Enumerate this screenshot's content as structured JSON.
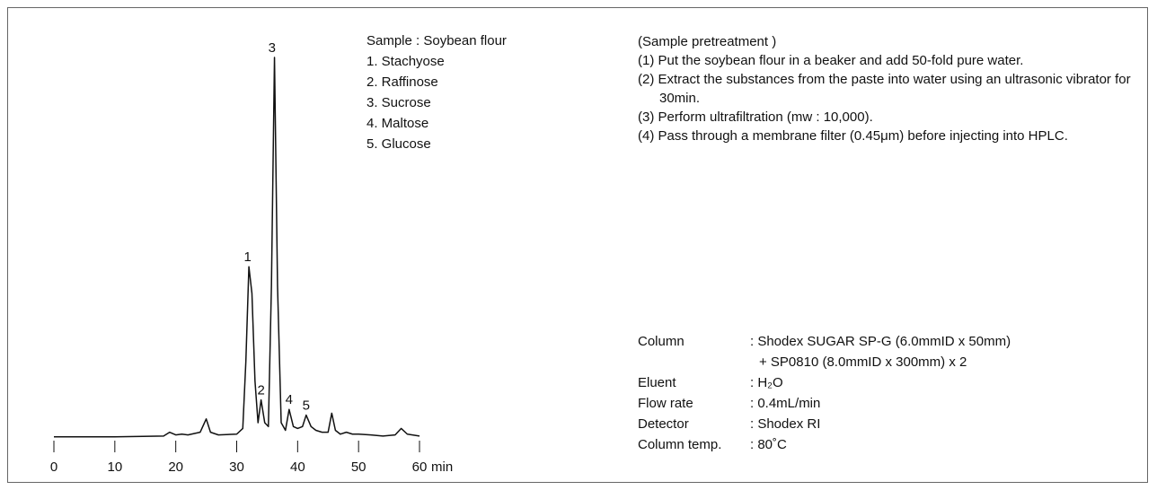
{
  "chart_data": {
    "type": "line",
    "x_label": "min",
    "x": [
      0,
      10,
      18,
      19,
      20,
      21,
      22,
      24,
      25,
      25.7,
      27,
      30,
      31,
      31.5,
      32,
      32.5,
      33,
      33.5,
      34,
      34.6,
      35.2,
      35.7,
      36.2,
      36.7,
      37.3,
      38,
      38.6,
      39.3,
      40,
      40.8,
      41.4,
      42.2,
      43,
      44,
      45,
      45.6,
      46.2,
      47,
      48,
      49,
      50,
      52,
      54,
      56,
      57,
      58,
      60
    ],
    "series": [
      {
        "color": "#111111",
        "values": [
          0.3,
          0.3,
          0.5,
          1.5,
          0.8,
          1.0,
          0.8,
          1.5,
          5,
          1.5,
          0.8,
          1.0,
          2.5,
          20,
          45,
          38,
          15,
          4,
          10,
          4,
          3,
          40,
          100,
          40,
          4,
          2,
          7.5,
          3,
          2.5,
          3,
          6,
          3,
          2,
          1.5,
          1.5,
          6.5,
          2,
          1,
          1.5,
          1,
          1,
          0.8,
          0.5,
          0.8,
          2.5,
          1,
          0.5
        ]
      }
    ],
    "xlim": [
      0,
      60
    ],
    "xticks": [
      0,
      10,
      20,
      30,
      40,
      50,
      60
    ],
    "ylim": [
      0,
      100
    ],
    "annotations": [
      {
        "text": "1",
        "x": 31.8,
        "y": 45
      },
      {
        "text": "2",
        "x": 34,
        "y": 10
      },
      {
        "text": "3",
        "x": 35.8,
        "y": 100
      },
      {
        "text": "4",
        "x": 38.6,
        "y": 7.5
      },
      {
        "text": "5",
        "x": 41.4,
        "y": 6
      }
    ]
  },
  "sample": {
    "title": "Sample : Soybean flour",
    "items": [
      "1. Stachyose",
      "2. Raffinose",
      "3. Sucrose",
      "4. Maltose",
      "5. Glucose"
    ]
  },
  "pretreatment": {
    "title": "(Sample pretreatment )",
    "steps": [
      "(1) Put the soybean flour in a beaker and add 50-fold pure water.",
      "(2) Extract the substances from the paste into water using an ultrasonic vibrator for 30min.",
      "(3) Perform ultrafiltration (mw : 10,000).",
      "(4) Pass through a membrane filter (0.45μm) before injecting into HPLC."
    ]
  },
  "conditions": [
    {
      "label": "Column",
      "values": [
        ": Shodex SUGAR SP-G (6.0mmID x 50mm)",
        "+ SP0810 (8.0mmID x 300mm) x 2"
      ]
    },
    {
      "label": "Eluent",
      "values": [
        ": H₂O"
      ]
    },
    {
      "label": "Flow rate",
      "values": [
        ": 0.4mL/min"
      ]
    },
    {
      "label": "Detector",
      "values": [
        ": Shodex RI"
      ]
    },
    {
      "label": "Column temp.",
      "values": [
        ": 80˚C"
      ]
    }
  ]
}
